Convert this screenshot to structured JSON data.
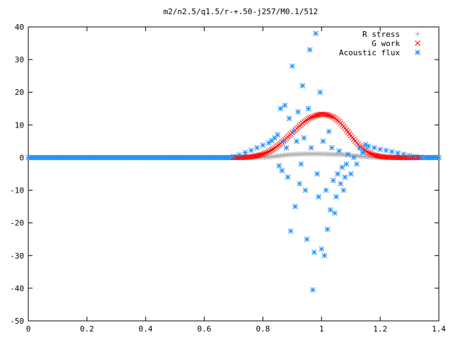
{
  "chart_data": {
    "type": "scatter",
    "title": "m2/n2.5/q1.5/r-+.50-j257/M0.1/512",
    "xlabel": "",
    "ylabel": "",
    "xlim": [
      0,
      1.4
    ],
    "ylim": [
      -50,
      40
    ],
    "xticks": [
      0,
      0.2,
      0.4,
      0.6,
      0.8,
      1,
      1.2,
      1.4
    ],
    "xtick_labels": [
      "0",
      "0.2",
      "0.4",
      "0.6",
      "0.8",
      "1",
      "1.2",
      "1.4"
    ],
    "yticks": [
      -50,
      -40,
      -30,
      -20,
      -10,
      0,
      10,
      20,
      30,
      40
    ],
    "ytick_labels": [
      "-50",
      "-40",
      "-30",
      "-20",
      "-10",
      "0",
      "10",
      "20",
      "30",
      "40"
    ],
    "grid": false,
    "legend_position": "top-right",
    "series": [
      {
        "name": "R stress",
        "marker": "plus",
        "color": "#a0a0a0",
        "x": [
          0.7,
          0.72,
          0.74,
          0.76,
          0.78,
          0.8,
          0.82,
          0.84,
          0.86,
          0.88,
          0.9,
          0.92,
          0.94,
          0.96,
          0.98,
          1.0,
          1.02,
          1.04,
          1.06,
          1.08,
          1.1,
          1.12,
          1.14,
          1.16,
          1.18,
          1.2,
          1.22,
          1.24,
          1.26,
          1.28,
          1.3,
          1.32,
          1.34
        ],
        "y": [
          0.0,
          0.0,
          0.0,
          0.01,
          0.03,
          0.08,
          0.18,
          0.35,
          0.6,
          0.8,
          0.95,
          1.05,
          1.1,
          1.1,
          1.1,
          1.1,
          1.05,
          1.0,
          0.95,
          0.85,
          0.7,
          0.5,
          0.3,
          0.15,
          0.06,
          0.02,
          0.0,
          0.0,
          0.0,
          0.0,
          0.0,
          0.0,
          0.0
        ]
      },
      {
        "name": "G work",
        "marker": "cross",
        "color": "#ff0000",
        "x": [
          0.7,
          0.72,
          0.74,
          0.76,
          0.78,
          0.8,
          0.82,
          0.84,
          0.86,
          0.88,
          0.9,
          0.92,
          0.94,
          0.96,
          0.98,
          1.0,
          1.02,
          1.04,
          1.06,
          1.08,
          1.1,
          1.12,
          1.14,
          1.16,
          1.18,
          1.2,
          1.22,
          1.24,
          1.26,
          1.28,
          1.3,
          1.32,
          1.34
        ],
        "y": [
          0.0,
          0.02,
          0.1,
          0.25,
          0.55,
          1.0,
          1.8,
          2.9,
          4.3,
          5.9,
          7.6,
          9.3,
          10.9,
          12.1,
          12.9,
          13.3,
          13.1,
          12.4,
          11.0,
          9.0,
          6.7,
          4.5,
          2.7,
          1.5,
          0.75,
          0.35,
          0.15,
          0.06,
          0.02,
          0.01,
          0.0,
          0.0,
          0.0
        ]
      },
      {
        "name": "Acoustic flux",
        "marker": "star",
        "color": "#1e90ff",
        "x": [
          0.7,
          0.72,
          0.74,
          0.76,
          0.78,
          0.8,
          0.82,
          0.83,
          0.84,
          0.85,
          0.855,
          0.86,
          0.865,
          0.87,
          0.875,
          0.88,
          0.885,
          0.89,
          0.895,
          0.9,
          0.905,
          0.91,
          0.915,
          0.92,
          0.925,
          0.93,
          0.935,
          0.94,
          0.945,
          0.95,
          0.955,
          0.96,
          0.965,
          0.97,
          0.975,
          0.98,
          0.985,
          0.99,
          0.995,
          1.0,
          1.005,
          1.01,
          1.015,
          1.02,
          1.025,
          1.03,
          1.035,
          1.04,
          1.045,
          1.05,
          1.055,
          1.06,
          1.065,
          1.07,
          1.075,
          1.08,
          1.085,
          1.09,
          1.1,
          1.11,
          1.12,
          1.13,
          1.14,
          1.15,
          1.16,
          1.18,
          1.2,
          1.22,
          1.24,
          1.26,
          1.28,
          1.3,
          1.32,
          1.34
        ],
        "y": [
          0.3,
          0.8,
          1.5,
          2.2,
          3.0,
          3.8,
          4.5,
          5.2,
          6.0,
          7.0,
          -2.5,
          15.0,
          -4.0,
          5.0,
          16.0,
          3.0,
          -6.0,
          12.0,
          -22.5,
          28.0,
          8.0,
          -15.0,
          5.0,
          14.0,
          -8.0,
          -2.0,
          22.0,
          6.0,
          -10.0,
          -25.0,
          15.0,
          33.0,
          3.0,
          -40.5,
          -29.0,
          38.0,
          -5.0,
          -12.0,
          20.0,
          -28.0,
          5.0,
          -30.0,
          -10.0,
          -22.0,
          8.0,
          -16.0,
          3.0,
          -7.0,
          -17.0,
          -12.0,
          -5.0,
          2.0,
          -8.0,
          -3.0,
          -10.0,
          -6.0,
          -2.0,
          1.0,
          -5.0,
          0.0,
          -2.0,
          3.0,
          1.5,
          4.0,
          3.5,
          3.0,
          2.5,
          2.2,
          1.8,
          1.4,
          1.0,
          0.6,
          0.3,
          0.1
        ]
      }
    ],
    "baseline_series_note_visible": false
  }
}
